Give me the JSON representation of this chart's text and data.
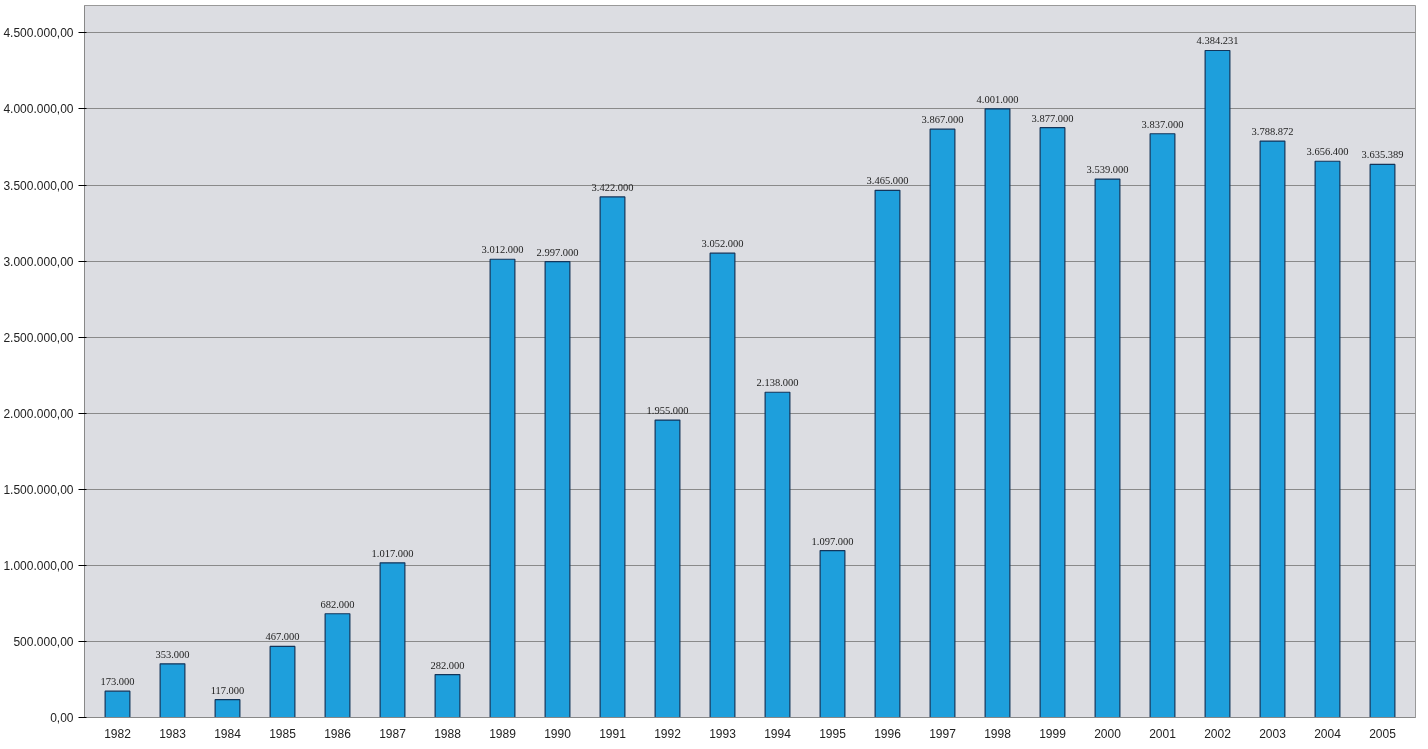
{
  "chart_data": {
    "type": "bar",
    "categories": [
      "1982",
      "1983",
      "1984",
      "1985",
      "1986",
      "1987",
      "1988",
      "1989",
      "1990",
      "1991",
      "1992",
      "1993",
      "1994",
      "1995",
      "1996",
      "1997",
      "1998",
      "1999",
      "2000",
      "2001",
      "2002",
      "2003",
      "2004",
      "2005"
    ],
    "values": [
      173000,
      353000,
      117000,
      467000,
      682000,
      1017000,
      282000,
      3012000,
      2997000,
      3422000,
      1955000,
      3052000,
      2138000,
      1097000,
      3465000,
      3867000,
      4001000,
      3877000,
      3539000,
      3837000,
      4384231,
      3788872,
      3656400,
      3635389
    ],
    "value_labels": [
      "173.000",
      "353.000",
      "117.000",
      "467.000",
      "682.000",
      "1.017.000",
      "282.000",
      "3.012.000",
      "2.997.000",
      "3.422.000",
      "1.955.000",
      "3.052.000",
      "2.138.000",
      "1.097.000",
      "3.465.000",
      "3.867.000",
      "4.001.000",
      "3.877.000",
      "3.539.000",
      "3.837.000",
      "4.384.231",
      "3.788.872",
      "3.656.400",
      "3.635.389"
    ],
    "color": "#1e9fdc",
    "ylim": [
      0,
      4500000
    ],
    "yticks": [
      {
        "value": 0,
        "label": "0,00"
      },
      {
        "value": 500000,
        "label": "500.000,00"
      },
      {
        "value": 1000000,
        "label": "1.000.000,00"
      },
      {
        "value": 1500000,
        "label": "1.500.000,00"
      },
      {
        "value": 2000000,
        "label": "2.000.000,00"
      },
      {
        "value": 2500000,
        "label": "2.500.000,00"
      },
      {
        "value": 3000000,
        "label": "3.000.000,00"
      },
      {
        "value": 3500000,
        "label": "3.500.000,00"
      },
      {
        "value": 4000000,
        "label": "4.000.000,00"
      },
      {
        "value": 4500000,
        "label": "4.500.000,00"
      }
    ],
    "grid": "y"
  }
}
